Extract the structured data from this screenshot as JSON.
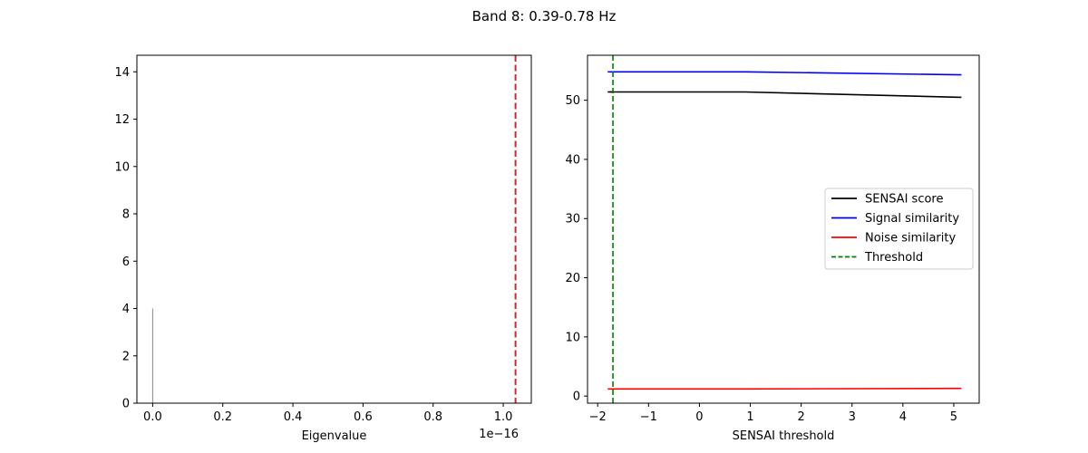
{
  "figure": {
    "title": "Band 8: 0.39-0.78 Hz"
  },
  "chart_data": [
    {
      "type": "bar",
      "title": "",
      "xlabel": "Eigenvalue",
      "ylabel": "",
      "x_offset_label": "1e−16",
      "xlim": [
        -0.045,
        1.08
      ],
      "ylim": [
        0,
        14.7
      ],
      "x_ticks": [
        0.0,
        0.2,
        0.4,
        0.6,
        0.8,
        1.0
      ],
      "x_tick_labels": [
        "0.0",
        "0.2",
        "0.4",
        "0.6",
        "0.8",
        "1.0"
      ],
      "y_ticks": [
        0,
        2,
        4,
        6,
        8,
        10,
        12,
        14
      ],
      "y_tick_labels": [
        "0",
        "2",
        "4",
        "6",
        "8",
        "10",
        "12",
        "14"
      ],
      "bars": [
        {
          "x": 0.0,
          "count": 4
        }
      ],
      "bar_color": "#888888",
      "threshold_line": {
        "x": 1.035,
        "color": "#d62728",
        "style": "dashed"
      },
      "grid": false,
      "legend": "none"
    },
    {
      "type": "line",
      "title": "",
      "xlabel": "SENSAI threshold",
      "ylabel": "",
      "xlim": [
        -2.2,
        5.5
      ],
      "ylim": [
        -1.2,
        57.6
      ],
      "x_ticks": [
        -2,
        -1,
        0,
        1,
        2,
        3,
        4,
        5
      ],
      "x_tick_labels": [
        "−2",
        "−1",
        "0",
        "1",
        "2",
        "3",
        "4",
        "5"
      ],
      "y_ticks": [
        0,
        10,
        20,
        30,
        40,
        50
      ],
      "y_tick_labels": [
        "0",
        "10",
        "20",
        "30",
        "40",
        "50"
      ],
      "series": [
        {
          "name": "SENSAI score",
          "color": "#000000",
          "style": "solid",
          "x": [
            -1.75,
            0.9,
            5.15
          ],
          "y": [
            51.4,
            51.4,
            50.5
          ]
        },
        {
          "name": "Signal similarity",
          "color": "#0000ff",
          "style": "solid",
          "x": [
            -1.75,
            0.9,
            5.15
          ],
          "y": [
            54.8,
            54.8,
            54.3
          ]
        },
        {
          "name": "Noise similarity",
          "color": "#ff0000",
          "style": "solid",
          "x": [
            -1.75,
            0.9,
            5.15
          ],
          "y": [
            1.2,
            1.2,
            1.3
          ]
        }
      ],
      "threshold": {
        "name": "Threshold",
        "x": -1.7,
        "color": "#008000",
        "style": "dashed"
      },
      "grid": false,
      "legend": "center-right"
    }
  ]
}
